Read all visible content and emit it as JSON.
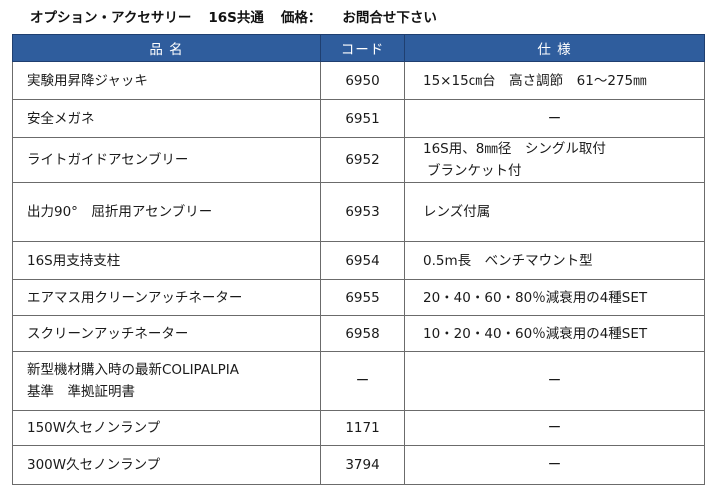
{
  "heading": {
    "part_label": "オプション・アクセサリー",
    "model": "16S共通",
    "price_label": "価格：",
    "price_value": "お問合せ下さい"
  },
  "table": {
    "headers": [
      "品 名",
      "コード",
      "仕 様"
    ],
    "rows": [
      {
        "name": [
          "実験用昇降ジャッキ"
        ],
        "code": "6950",
        "spec": [
          "15×15㎝台　高さ調節　61～275㎜"
        ]
      },
      {
        "name": [
          "安全メガネ"
        ],
        "code": "6951",
        "spec": [
          "ー"
        ]
      },
      {
        "name": [
          "ライトガイドアセンブリー"
        ],
        "code": "6952",
        "spec": [
          "16S用、8㎜径　シングル取付",
          "ブランケット付"
        ]
      },
      {
        "name": [
          "出力90°　屈折用アセンブリー"
        ],
        "code": "6953",
        "spec": [
          "レンズ付属"
        ]
      },
      {
        "name": [
          "16S用支持支柱"
        ],
        "code": "6954",
        "spec": [
          "0.5m長　ベンチマウント型"
        ]
      },
      {
        "name": [
          "エアマス用クリーンアッチネーター"
        ],
        "code": "6955",
        "spec": [
          "20・40・60・80％減衰用の4種SET"
        ]
      },
      {
        "name": [
          "スクリーンアッチネーター"
        ],
        "code": "6958",
        "spec": [
          "10・20・40・60％減衰用の4種SET"
        ]
      },
      {
        "name": [
          "新型機材購入時の最新COLIPALPIA",
          "基準　準拠証明書"
        ],
        "code": "ー",
        "spec": [
          "ー"
        ]
      },
      {
        "name": [
          "150W久セノンランプ"
        ],
        "code": "1171",
        "spec": [
          "ー"
        ]
      },
      {
        "name": [
          "300W久セノンランプ"
        ],
        "code": "3794",
        "spec": [
          "ー"
        ]
      }
    ]
  }
}
